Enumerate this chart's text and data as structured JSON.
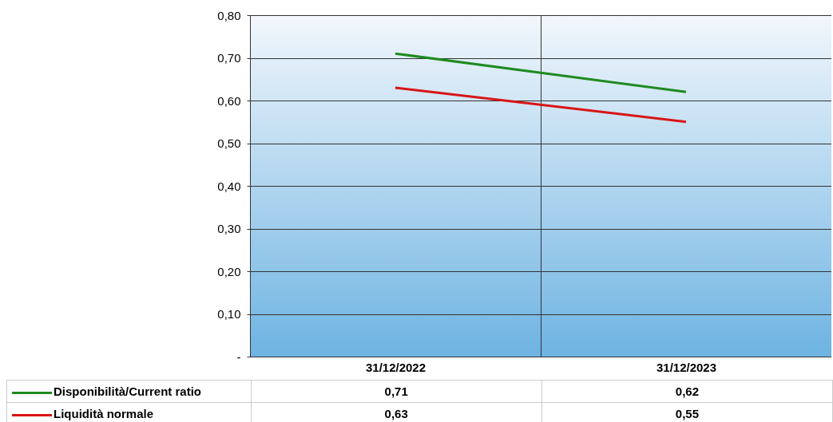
{
  "chart_data": {
    "type": "line",
    "categories": [
      "31/12/2022",
      "31/12/2023"
    ],
    "series": [
      {
        "name": "Disponibilità/Current ratio",
        "color": "#1f8a1f",
        "values": [
          0.71,
          0.62
        ],
        "value_labels": [
          "0,71",
          "0,62"
        ]
      },
      {
        "name": "Liquidità normale",
        "color": "#d81414",
        "values": [
          0.63,
          0.55
        ],
        "value_labels": [
          "0,63",
          "0,55"
        ]
      }
    ],
    "ylim": [
      0,
      0.8
    ],
    "yticks": [
      {
        "value": 0,
        "label": "-"
      },
      {
        "value": 0.1,
        "label": "0,10"
      },
      {
        "value": 0.2,
        "label": "0,20"
      },
      {
        "value": 0.3,
        "label": "0,30"
      },
      {
        "value": 0.4,
        "label": "0,40"
      },
      {
        "value": 0.5,
        "label": "0,50"
      },
      {
        "value": 0.6,
        "label": "0,60"
      },
      {
        "value": 0.7,
        "label": "0,70"
      },
      {
        "value": 0.8,
        "label": "0,80"
      }
    ],
    "grid": true,
    "legend": "bottom",
    "marker": "none",
    "line_style": "solid"
  }
}
